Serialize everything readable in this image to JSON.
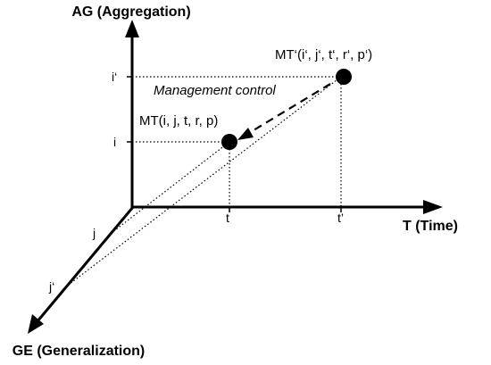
{
  "axes": {
    "vertical": "AG (Aggregation)",
    "horizontal": "T (Time)",
    "diagonal": "GE (Generalization)"
  },
  "ticks": {
    "i_prime": "i‘",
    "i": "i",
    "t": "t",
    "t_prime": "t’",
    "j": "j",
    "j_prime": "j‘"
  },
  "points": {
    "mt": "MT(i, j, t, r, p)",
    "mt_prime": "MT‘(i‘, j‘, t‘, r‘, p‘)"
  },
  "arrow_label": "Management control"
}
